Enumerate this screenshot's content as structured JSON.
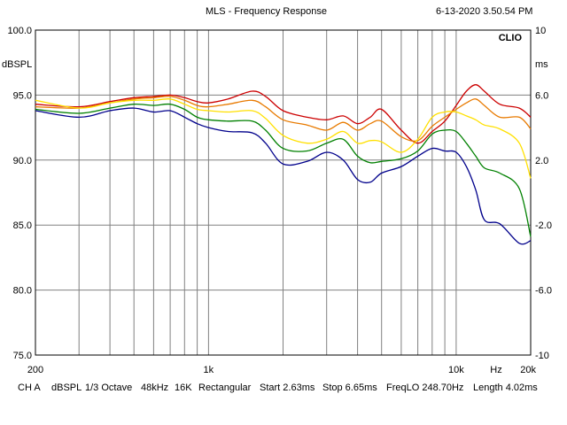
{
  "header": {
    "title": "MLS - Frequency Response",
    "timestamp": "6-13-2020 3.50.54 PM"
  },
  "brand": "CLIO",
  "footer": {
    "channel": "CH A",
    "unit": "dBSPL",
    "smoothing": "1/3 Octave",
    "sample_rate": "48kHz",
    "size": "16K",
    "window": "Rectangular",
    "start": "Start 2.63ms",
    "stop": "Stop 6.65ms",
    "freqlo": "FreqLO 248.70Hz",
    "length": "Length 4.02ms"
  },
  "chart_data": {
    "type": "line",
    "title": "MLS - Frequency Response",
    "xscale": "log",
    "xlim": [
      200,
      20000
    ],
    "x_tick_labels": [
      "200",
      "1k",
      "10k",
      "Hz",
      "20k"
    ],
    "ylabel_left": "dBSPL",
    "ylim": [
      75,
      100
    ],
    "y_ticks_left": [
      "100.0",
      "95.0",
      "90.0",
      "85.0",
      "80.0",
      "75.0"
    ],
    "ylabel_right": "ms",
    "y2lim": [
      -10,
      10
    ],
    "y_ticks_right": [
      "10",
      "6.0",
      "2.0",
      "-2.0",
      "-6.0",
      "-10"
    ],
    "grid": true,
    "x": [
      200,
      300,
      400,
      500,
      600,
      700,
      800,
      900,
      1000,
      1200,
      1500,
      1700,
      2000,
      2500,
      3000,
      3500,
      4000,
      4500,
      5000,
      6000,
      7000,
      8000,
      9000,
      10000,
      11000,
      12000,
      13000,
      15000,
      18000,
      20000
    ],
    "series": [
      {
        "name": "red",
        "color": "#cc0000",
        "values": [
          94.3,
          94.1,
          94.5,
          94.8,
          94.9,
          95.0,
          94.8,
          94.5,
          94.4,
          94.7,
          95.3,
          94.9,
          93.8,
          93.3,
          93.1,
          93.4,
          92.8,
          93.3,
          93.9,
          92.3,
          91.3,
          92.2,
          93.0,
          94.2,
          95.3,
          95.8,
          95.3,
          94.3,
          94.0,
          93.3
        ]
      },
      {
        "name": "orange",
        "color": "#e87a00",
        "values": [
          94.1,
          94.0,
          94.4,
          94.7,
          94.8,
          94.9,
          94.6,
          94.2,
          94.1,
          94.3,
          94.6,
          94.1,
          93.1,
          92.7,
          92.3,
          92.9,
          92.3,
          92.8,
          93.0,
          91.8,
          91.5,
          92.6,
          93.3,
          93.9,
          94.4,
          94.7,
          94.2,
          93.3,
          93.3,
          92.4
        ]
      },
      {
        "name": "yellow",
        "color": "#ffe000",
        "values": [
          94.6,
          94.0,
          94.4,
          94.6,
          94.6,
          94.7,
          94.3,
          93.9,
          93.8,
          93.7,
          93.8,
          93.2,
          91.9,
          91.3,
          91.6,
          92.2,
          91.3,
          91.5,
          91.4,
          90.6,
          91.6,
          93.3,
          93.7,
          93.7,
          93.4,
          93.1,
          92.7,
          92.4,
          91.3,
          88.6
        ]
      },
      {
        "name": "green",
        "color": "#008000",
        "values": [
          93.9,
          93.6,
          94.0,
          94.3,
          94.2,
          94.3,
          93.9,
          93.3,
          93.1,
          93.0,
          93.0,
          92.3,
          90.9,
          90.7,
          91.3,
          91.6,
          90.3,
          89.8,
          89.9,
          90.1,
          90.7,
          92.0,
          92.3,
          92.2,
          91.3,
          90.3,
          89.4,
          89.0,
          87.8,
          84.1
        ]
      },
      {
        "name": "blue",
        "color": "#00008b",
        "values": [
          93.8,
          93.3,
          93.8,
          94.0,
          93.7,
          93.8,
          93.3,
          92.8,
          92.5,
          92.2,
          92.1,
          91.3,
          89.7,
          89.9,
          90.6,
          90.0,
          88.5,
          88.3,
          89.0,
          89.5,
          90.3,
          90.9,
          90.7,
          90.6,
          89.5,
          87.7,
          85.4,
          85.1,
          83.6,
          83.8
        ]
      }
    ]
  }
}
